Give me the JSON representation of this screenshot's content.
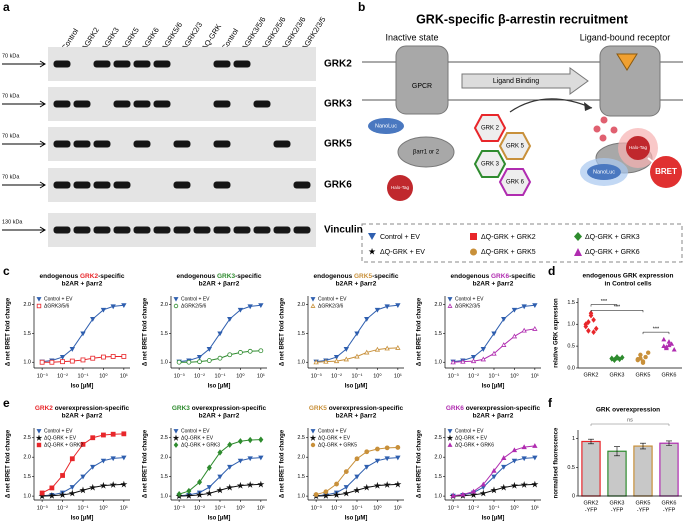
{
  "panels": [
    "a",
    "b",
    "c",
    "d",
    "e",
    "f"
  ],
  "blot": {
    "lanes": [
      "Control",
      "ΔGRK2",
      "ΔGRK3",
      "ΔGRK5",
      "ΔGRK6",
      "ΔGRK5/6",
      "ΔGRK2/3",
      "ΔQ-GRK",
      "Control",
      "ΔGRK3/5/6",
      "ΔGRK2/5/6",
      "ΔGRK2/3/6",
      "ΔGRK2/3/5"
    ],
    "rows": [
      "GRK2",
      "GRK3",
      "GRK5",
      "GRK6",
      "Vinculin"
    ],
    "markers": [
      "70 kDa",
      "70 kDa",
      "70 kDa",
      "70 kDa",
      "130 kDa"
    ]
  },
  "diagram": {
    "title": "GRK-specific β-arrestin recruitment",
    "inactive": "Inactive state",
    "active": "Ligand-bound receptor",
    "gpcr": "GPCR",
    "ligand": "Ligand Binding",
    "nanoluc": "NanoLuc",
    "arrestin": "βarr1 or 2",
    "halotag": "Halo-Tag",
    "grks": [
      "GRK 2",
      "GRK 5",
      "GRK 3",
      "GRK 6"
    ],
    "nanoluc_active": "NanoLuc",
    "halotag_active": "Halo-Tag",
    "bret": "BRET",
    "legend": [
      "Control + EV",
      "ΔQ-GRK + GRK2",
      "ΔQ-GRK + GRK3",
      "ΔQ-GRK + EV",
      "ΔQ-GRK + GRK5",
      "ΔQ-GRK + GRK6"
    ]
  },
  "chart_data": [
    {
      "type": "line",
      "title": "endogenous ",
      "title_highlight": "GRK2",
      "title_end": "-specific",
      "title_color": "#e8262a",
      "subtitle": "b2AR + βarr2",
      "xlabel": "Iso [µM]",
      "ylabel": "Δ net BRET fold change",
      "xscale": "log",
      "xlim": [
        0.0004,
        20
      ],
      "xticks": [
        {
          "value": 0.001,
          "label": "10⁻³"
        },
        {
          "value": 0.01,
          "label": "10⁻²"
        },
        {
          "value": 0.1,
          "label": "10⁻¹"
        },
        {
          "value": 1,
          "label": "10⁰"
        },
        {
          "value": 10,
          "label": "10¹"
        }
      ],
      "ylim": [
        0.9,
        2.15
      ],
      "yticks": [
        {
          "value": 1,
          "label": "1.0"
        },
        1.5,
        {
          "value": 2,
          "label": "2.0"
        }
      ],
      "x": [
        0.001,
        0.003,
        0.01,
        0.03,
        0.1,
        0.3,
        1,
        3,
        10
      ],
      "series": [
        {
          "name": "Control + EV",
          "color": "#2f5faf",
          "marker": "triangle-down",
          "values": [
            1.01,
            1.03,
            1.09,
            1.23,
            1.5,
            1.75,
            1.91,
            1.97,
            1.99
          ]
        },
        {
          "name": "ΔGRK3/5/6",
          "color": "#e8262a",
          "marker": "square-open",
          "values": [
            1.0,
            1.0,
            1.01,
            1.02,
            1.04,
            1.07,
            1.09,
            1.1,
            1.1
          ]
        }
      ]
    },
    {
      "type": "line",
      "title": "endogenous ",
      "title_highlight": "GRK3",
      "title_end": "-specific",
      "title_color": "#2e8b2e",
      "subtitle": "b2AR + βarr2",
      "xlabel": "Iso [µM]",
      "ylabel": "Δ net BRET fold change",
      "xscale": "log",
      "xlim": [
        0.0004,
        20
      ],
      "xticks": [
        {
          "value": 0.001,
          "label": "10⁻³"
        },
        {
          "value": 0.01,
          "label": "10⁻²"
        },
        {
          "value": 0.1,
          "label": "10⁻¹"
        },
        {
          "value": 1,
          "label": "10⁰"
        },
        {
          "value": 10,
          "label": "10¹"
        }
      ],
      "ylim": [
        0.9,
        2.15
      ],
      "yticks": [
        {
          "value": 1,
          "label": "1.0"
        },
        1.5,
        {
          "value": 2,
          "label": "2.0"
        }
      ],
      "x": [
        0.001,
        0.003,
        0.01,
        0.03,
        0.1,
        0.3,
        1,
        3,
        10
      ],
      "series": [
        {
          "name": "Control + EV",
          "color": "#2f5faf",
          "marker": "triangle-down",
          "values": [
            1.01,
            1.03,
            1.09,
            1.23,
            1.5,
            1.75,
            1.91,
            1.97,
            1.99
          ]
        },
        {
          "name": "ΔGRK2/5/6",
          "color": "#2e8b2e",
          "marker": "circle-open",
          "values": [
            1.0,
            1.0,
            1.01,
            1.03,
            1.07,
            1.13,
            1.17,
            1.19,
            1.2
          ]
        }
      ]
    },
    {
      "type": "line",
      "title": "endogenous ",
      "title_highlight": "GRK5",
      "title_end": "-specific",
      "title_color": "#c8903a",
      "subtitle": "b2AR + βarr2",
      "xlabel": "Iso [µM]",
      "ylabel": "Δ net BRET fold change",
      "xscale": "log",
      "xlim": [
        0.0004,
        20
      ],
      "xticks": [
        {
          "value": 0.001,
          "label": "10⁻³"
        },
        {
          "value": 0.01,
          "label": "10⁻²"
        },
        {
          "value": 0.1,
          "label": "10⁻¹"
        },
        {
          "value": 1,
          "label": "10⁰"
        },
        {
          "value": 10,
          "label": "10¹"
        }
      ],
      "ylim": [
        0.9,
        2.15
      ],
      "yticks": [
        {
          "value": 1,
          "label": "1.0"
        },
        1.5,
        {
          "value": 2,
          "label": "2.0"
        }
      ],
      "x": [
        0.001,
        0.003,
        0.01,
        0.03,
        0.1,
        0.3,
        1,
        3,
        10
      ],
      "series": [
        {
          "name": "Control + EV",
          "color": "#2f5faf",
          "marker": "triangle-down",
          "values": [
            1.01,
            1.03,
            1.09,
            1.23,
            1.5,
            1.75,
            1.91,
            1.97,
            1.99
          ]
        },
        {
          "name": "ΔGRK2/3/6",
          "color": "#c8903a",
          "marker": "triangle-up-open",
          "values": [
            1.0,
            1.01,
            1.02,
            1.05,
            1.1,
            1.17,
            1.22,
            1.24,
            1.25
          ]
        }
      ]
    },
    {
      "type": "line",
      "title": "endogenous ",
      "title_highlight": "GRK6",
      "title_end": "-specific",
      "title_color": "#b02cb0",
      "subtitle": "b2AR + βarr2",
      "xlabel": "Iso [µM]",
      "ylabel": "Δ net BRET fold change",
      "xscale": "log",
      "xlim": [
        0.0004,
        20
      ],
      "xticks": [
        {
          "value": 0.001,
          "label": "10⁻³"
        },
        {
          "value": 0.01,
          "label": "10⁻²"
        },
        {
          "value": 0.1,
          "label": "10⁻¹"
        },
        {
          "value": 1,
          "label": "10⁰"
        },
        {
          "value": 10,
          "label": "10¹"
        }
      ],
      "ylim": [
        0.9,
        2.15
      ],
      "yticks": [
        {
          "value": 1,
          "label": "1.0"
        },
        1.5,
        {
          "value": 2,
          "label": "2.0"
        }
      ],
      "x": [
        0.001,
        0.003,
        0.01,
        0.03,
        0.1,
        0.3,
        1,
        3,
        10
      ],
      "series": [
        {
          "name": "Control + EV",
          "color": "#2f5faf",
          "marker": "triangle-down",
          "values": [
            1.01,
            1.03,
            1.09,
            1.23,
            1.5,
            1.75,
            1.91,
            1.97,
            1.99
          ]
        },
        {
          "name": "ΔGRK2/3/5",
          "color": "#b02cb0",
          "marker": "triangle-up-open",
          "values": [
            1.0,
            1.01,
            1.02,
            1.05,
            1.15,
            1.3,
            1.45,
            1.55,
            1.58
          ]
        }
      ]
    },
    {
      "type": "scatter",
      "title": "endogenous GRK expression",
      "subtitle": "in Control cells",
      "ylabel": "relative GRK expression",
      "categories": [
        "GRK2",
        "GRK3",
        "GRK5",
        "GRK6"
      ],
      "colors": [
        "#e8262a",
        "#2e8b2e",
        "#c8903a",
        "#b02cb0"
      ],
      "markers": [
        "diamond",
        "diamond",
        "circle",
        "triangle-up"
      ],
      "ylim": [
        0,
        1.6
      ],
      "yticks": [
        {
          "value": 0,
          "label": "0.0"
        },
        0.5,
        {
          "value": 1,
          "label": "1.0"
        },
        1.5
      ],
      "values": [
        [
          1.0,
          0.85,
          1.2,
          1.1,
          0.9,
          0.95,
          1.05,
          1.25,
          0.82
        ],
        [
          0.22,
          0.18,
          0.25,
          0.2,
          0.24,
          0.21,
          0.19,
          0.23
        ],
        [
          0.2,
          0.3,
          0.15,
          0.25,
          0.35,
          0.18,
          0.22,
          0.12
        ],
        [
          0.5,
          0.45,
          0.6,
          0.55,
          0.42,
          0.65,
          0.48,
          0.52
        ]
      ],
      "annotations": [
        "***",
        "***",
        "***"
      ]
    },
    {
      "type": "line",
      "title_highlight": "GRK2",
      "title_end": " overexpression-specific",
      "title_color": "#e8262a",
      "subtitle": "b2AR + βarr2",
      "xlabel": "Iso [µM]",
      "ylabel": "Δ net BRET fold change",
      "xscale": "log",
      "xlim": [
        0.0004,
        20
      ],
      "xticks": [
        {
          "value": 0.001,
          "label": "10⁻³"
        },
        {
          "value": 0.01,
          "label": "10⁻²"
        },
        {
          "value": 0.1,
          "label": "10⁻¹"
        },
        {
          "value": 1,
          "label": "10⁰"
        },
        {
          "value": 10,
          "label": "10¹"
        }
      ],
      "ylim": [
        0.9,
        2.75
      ],
      "yticks": [
        {
          "value": 1,
          "label": "1.0"
        },
        1.5,
        {
          "value": 2,
          "label": "2.0"
        },
        2.5
      ],
      "x": [
        0.001,
        0.003,
        0.01,
        0.03,
        0.1,
        0.3,
        1,
        3,
        10
      ],
      "series": [
        {
          "name": "Control + EV",
          "color": "#2f5faf",
          "marker": "triangle-down",
          "values": [
            1.01,
            1.03,
            1.09,
            1.23,
            1.5,
            1.75,
            1.91,
            1.97,
            1.99
          ]
        },
        {
          "name": "ΔQ-GRK + EV",
          "color": "#111111",
          "marker": "star",
          "values": [
            1.0,
            1.01,
            1.03,
            1.07,
            1.15,
            1.22,
            1.27,
            1.29,
            1.3
          ]
        },
        {
          "name": "ΔQ-GRK + GRK2",
          "color": "#e8262a",
          "marker": "square",
          "values": [
            1.08,
            1.21,
            1.53,
            1.96,
            2.33,
            2.5,
            2.57,
            2.59,
            2.6
          ]
        }
      ]
    },
    {
      "type": "line",
      "title_highlight": "GRK3",
      "title_end": " overexpression-specific",
      "title_color": "#2e8b2e",
      "subtitle": "b2AR + βarr2",
      "xlabel": "Iso [µM]",
      "ylabel": "Δ net BRET fold change",
      "xscale": "log",
      "xlim": [
        0.0004,
        20
      ],
      "xticks": [
        {
          "value": 0.001,
          "label": "10⁻³"
        },
        {
          "value": 0.01,
          "label": "10⁻²"
        },
        {
          "value": 0.1,
          "label": "10⁻¹"
        },
        {
          "value": 1,
          "label": "10⁰"
        },
        {
          "value": 10,
          "label": "10¹"
        }
      ],
      "ylim": [
        0.9,
        2.75
      ],
      "yticks": [
        {
          "value": 1,
          "label": "1.0"
        },
        1.5,
        {
          "value": 2,
          "label": "2.0"
        },
        2.5
      ],
      "x": [
        0.001,
        0.003,
        0.01,
        0.03,
        0.1,
        0.3,
        1,
        3,
        10
      ],
      "series": [
        {
          "name": "Control + EV",
          "color": "#2f5faf",
          "marker": "triangle-down",
          "values": [
            1.01,
            1.03,
            1.09,
            1.23,
            1.5,
            1.75,
            1.91,
            1.97,
            1.99
          ]
        },
        {
          "name": "ΔQ-GRK + EV",
          "color": "#111111",
          "marker": "star",
          "values": [
            1.0,
            1.01,
            1.03,
            1.07,
            1.15,
            1.22,
            1.27,
            1.29,
            1.3
          ]
        },
        {
          "name": "ΔQ-GRK + GRK3",
          "color": "#2e8b2e",
          "marker": "diamond",
          "values": [
            1.05,
            1.13,
            1.36,
            1.73,
            2.12,
            2.32,
            2.41,
            2.44,
            2.45
          ]
        }
      ]
    },
    {
      "type": "line",
      "title_highlight": "GRK5",
      "title_end": " overexpression-specific",
      "title_color": "#c8903a",
      "subtitle": "b2AR + βarr2",
      "xlabel": "Iso [µM]",
      "ylabel": "Δ net BRET fold change",
      "xscale": "log",
      "xlim": [
        0.0004,
        20
      ],
      "xticks": [
        {
          "value": 0.001,
          "label": "10⁻³"
        },
        {
          "value": 0.01,
          "label": "10⁻²"
        },
        {
          "value": 0.1,
          "label": "10⁻¹"
        },
        {
          "value": 1,
          "label": "10⁰"
        },
        {
          "value": 10,
          "label": "10¹"
        }
      ],
      "ylim": [
        0.9,
        2.75
      ],
      "yticks": [
        {
          "value": 1,
          "label": "1.0"
        },
        1.5,
        {
          "value": 2,
          "label": "2.0"
        },
        2.5
      ],
      "x": [
        0.001,
        0.003,
        0.01,
        0.03,
        0.1,
        0.3,
        1,
        3,
        10
      ],
      "series": [
        {
          "name": "Control + EV",
          "color": "#2f5faf",
          "marker": "triangle-down",
          "values": [
            1.01,
            1.03,
            1.09,
            1.23,
            1.5,
            1.75,
            1.91,
            1.97,
            1.99
          ]
        },
        {
          "name": "ΔQ-GRK + EV",
          "color": "#111111",
          "marker": "star",
          "values": [
            1.0,
            1.01,
            1.03,
            1.07,
            1.15,
            1.22,
            1.27,
            1.29,
            1.3
          ]
        },
        {
          "name": "ΔQ-GRK + GRK5",
          "color": "#c8903a",
          "marker": "circle",
          "values": [
            1.04,
            1.11,
            1.31,
            1.63,
            1.96,
            2.14,
            2.21,
            2.24,
            2.25
          ]
        }
      ]
    },
    {
      "type": "line",
      "title_highlight": "GRK6",
      "title_end": " overexpression-specific",
      "title_color": "#b02cb0",
      "subtitle": "b2AR + βarr2",
      "xlabel": "Iso [µM]",
      "ylabel": "Δ net BRET fold change",
      "xscale": "log",
      "xlim": [
        0.0004,
        20
      ],
      "xticks": [
        {
          "value": 0.001,
          "label": "10⁻³"
        },
        {
          "value": 0.01,
          "label": "10⁻²"
        },
        {
          "value": 0.1,
          "label": "10⁻¹"
        },
        {
          "value": 1,
          "label": "10⁰"
        },
        {
          "value": 10,
          "label": "10¹"
        }
      ],
      "ylim": [
        0.9,
        2.75
      ],
      "yticks": [
        {
          "value": 1,
          "label": "1.0"
        },
        1.5,
        {
          "value": 2,
          "label": "2.0"
        },
        2.5
      ],
      "x": [
        0.001,
        0.003,
        0.01,
        0.03,
        0.1,
        0.3,
        1,
        3,
        10
      ],
      "series": [
        {
          "name": "Control + EV",
          "color": "#2f5faf",
          "marker": "triangle-down",
          "values": [
            1.01,
            1.03,
            1.09,
            1.23,
            1.5,
            1.75,
            1.91,
            1.97,
            1.99
          ]
        },
        {
          "name": "ΔQ-GRK + EV",
          "color": "#111111",
          "marker": "star",
          "values": [
            1.0,
            1.01,
            1.03,
            1.07,
            1.15,
            1.22,
            1.27,
            1.29,
            1.3
          ]
        },
        {
          "name": "ΔQ-GRK + GRK6",
          "color": "#b02cb0",
          "marker": "triangle-up",
          "values": [
            1.01,
            1.04,
            1.12,
            1.3,
            1.65,
            1.98,
            2.18,
            2.26,
            2.29
          ]
        }
      ]
    },
    {
      "type": "bar",
      "title": "GRK overexpression",
      "ylabel": "normalised fluorescence",
      "categories": [
        "GRK2",
        "GRK3",
        "GRK5",
        "GRK6"
      ],
      "category_suffix": "-YFP",
      "values": [
        0.95,
        0.78,
        0.87,
        0.92
      ],
      "errors": [
        0.04,
        0.08,
        0.05,
        0.04
      ],
      "color": "#c8c8c8",
      "edge_colors": [
        "#e8262a",
        "#2e8b2e",
        "#c8903a",
        "#b02cb0"
      ],
      "ylim": [
        0,
        1.15
      ],
      "yticks": [
        0,
        0.5,
        1
      ],
      "annotations": [
        "ns"
      ]
    }
  ]
}
